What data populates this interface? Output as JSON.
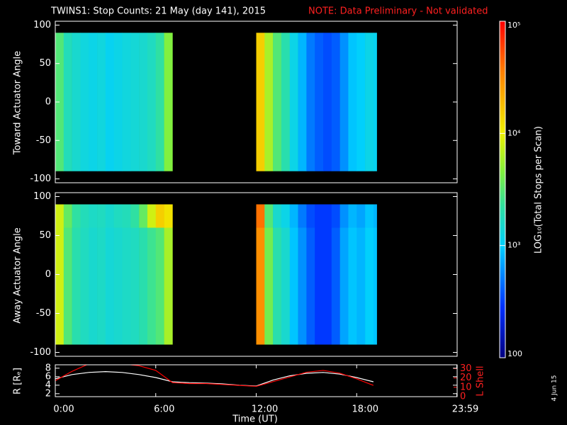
{
  "chart_data": [
    {
      "type": "heatmap",
      "title": "TWINS1: Stop Counts: 21 May (day 141), 2015",
      "note": "NOTE: Data Preliminary - Not validated",
      "ylabel": "Toward Actuator Angle",
      "xlim": [
        0,
        24
      ],
      "ylim": [
        -105,
        105
      ],
      "yticks": [
        -100,
        -50,
        0,
        50,
        100
      ],
      "bins": [
        0,
        0.5,
        1,
        1.5,
        2,
        2.5,
        3,
        3.5,
        4,
        4.5,
        5,
        5.5,
        6,
        6.5,
        7,
        12,
        12.5,
        13,
        13.5,
        14,
        14.5,
        15,
        15.5,
        16,
        16.5,
        17,
        17.5,
        18,
        18.5,
        19,
        19.2
      ],
      "rows": [
        {
          "angles": [
            -90,
            90
          ],
          "values": [
            3000,
            1800,
            1500,
            1300,
            1200,
            1300,
            1100,
            1200,
            1300,
            1400,
            1500,
            1700,
            2200,
            4500,
            null,
            15000,
            6000,
            3000,
            2000,
            1200,
            800,
            500,
            400,
            350,
            400,
            600,
            900,
            1000,
            1200,
            1100
          ]
        }
      ],
      "colorbar": {
        "label": "LOG₁₀(Total Stops per Scan)",
        "clim": [
          100,
          100000
        ],
        "log": true,
        "ticks": [
          {
            "value": 100,
            "label": "100"
          },
          {
            "value": 1000,
            "label": "10³"
          },
          {
            "value": 10000,
            "label": "10⁴"
          },
          {
            "value": 100000,
            "label": "10⁵"
          }
        ]
      }
    },
    {
      "type": "heatmap",
      "ylabel": "Away Actuator Angle",
      "xlim": [
        0,
        24
      ],
      "ylim": [
        -105,
        105
      ],
      "yticks": [
        -100,
        -50,
        0,
        50,
        100
      ],
      "bins": [
        0,
        0.5,
        1,
        1.5,
        2,
        2.5,
        3,
        3.5,
        4,
        4.5,
        5,
        5.5,
        6,
        6.5,
        7,
        12,
        12.5,
        13,
        13.5,
        14,
        14.5,
        15,
        15.5,
        16,
        16.5,
        17,
        17.5,
        18,
        18.5,
        19,
        19.2
      ],
      "rows": [
        {
          "angles": [
            -90,
            60
          ],
          "values": [
            8000,
            3000,
            2000,
            1700,
            1500,
            1600,
            1400,
            1500,
            1600,
            1700,
            2000,
            2500,
            3000,
            6000,
            null,
            30000,
            4000,
            2000,
            1500,
            900,
            600,
            400,
            300,
            300,
            400,
            700,
            900,
            800,
            1000,
            900
          ]
        },
        {
          "angles": [
            60,
            90
          ],
          "values": [
            8000,
            3500,
            2200,
            1800,
            1600,
            1700,
            1500,
            1700,
            1800,
            2200,
            3500,
            8000,
            15000,
            12000,
            null,
            40000,
            3000,
            1500,
            1200,
            800,
            500,
            350,
            300,
            300,
            350,
            600,
            800,
            700,
            900,
            800
          ]
        }
      ]
    },
    {
      "type": "line",
      "xlabel": "Time (UT)",
      "ylabel": "R [Rₑ]",
      "y2label": "L Shell",
      "date_stamp": "4 Jun 15",
      "xlim": [
        0,
        24
      ],
      "xticks": [
        {
          "value": 0,
          "label": "0:00"
        },
        {
          "value": 6,
          "label": "6:00"
        },
        {
          "value": 12,
          "label": "12:00"
        },
        {
          "value": 18,
          "label": "18:00"
        },
        {
          "value": 23.98,
          "label": "23:59"
        }
      ],
      "ylim": [
        1.3,
        8.8
      ],
      "yticks": [
        2,
        4,
        6,
        8
      ],
      "y2lim": [
        0,
        34
      ],
      "y2ticks": [
        0,
        10,
        20,
        30
      ],
      "x": [
        0,
        1,
        2,
        3,
        4,
        5,
        6,
        7,
        8,
        9,
        10,
        11,
        12,
        13,
        14,
        15,
        16,
        17,
        18,
        19
      ],
      "series": [
        {
          "name": "R",
          "color": "#ffffff",
          "values": [
            5.5,
            6.5,
            7,
            7.2,
            7,
            6.5,
            5.8,
            4.8,
            4.6,
            4.5,
            4.3,
            4.0,
            3.8,
            5.2,
            6.2,
            6.8,
            7.0,
            6.6,
            5.8,
            4.8
          ]
        },
        {
          "name": "L Shell",
          "color": "#ff0000",
          "axis": "y2",
          "values": [
            17,
            27,
            35,
            35,
            35,
            33,
            28,
            15,
            14,
            14,
            13,
            12,
            11,
            16,
            21,
            26,
            28,
            25,
            19,
            12
          ]
        }
      ]
    }
  ]
}
